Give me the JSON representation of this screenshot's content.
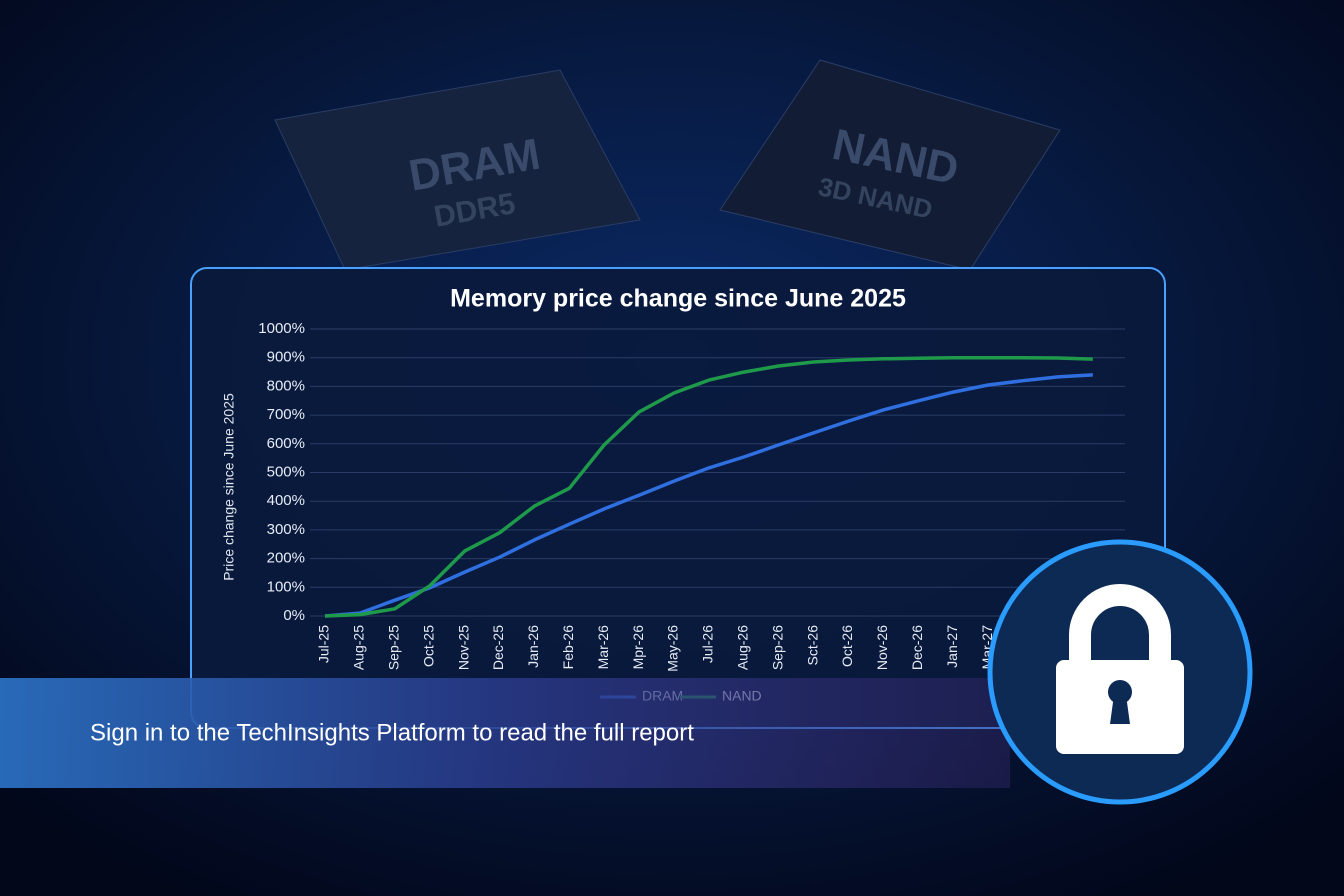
{
  "background": {
    "chips": [
      {
        "label": "DRAM",
        "sublabel": "DDR5"
      },
      {
        "label": "NAND",
        "sublabel": "3D NAND"
      }
    ]
  },
  "chart_data": {
    "type": "line",
    "title": "Memory price change since June 2025",
    "y_label": "Price change since June 2025",
    "categories": [
      "Jul-25",
      "Aug-25",
      "Sep-25",
      "Oct-25",
      "Nov-25",
      "Dec-25",
      "Jan-26",
      "Feb-26",
      "Mar-26",
      "Mpr-26",
      "May-26",
      "Jul-26",
      "Aug-26",
      "Sep-26",
      "Sct-26",
      "Oct-26",
      "Nov-26",
      "Dec-26",
      "Jan-27",
      "Mar-27",
      null,
      null,
      null
    ],
    "series": [
      {
        "name": "DRAM",
        "color": "#2f6fe0",
        "values": [
          0,
          10,
          55,
          98,
          153,
          205,
          265,
          320,
          373,
          421,
          470,
          516,
          554,
          596,
          638,
          679,
          718,
          750,
          780,
          805,
          820,
          833,
          840
        ]
      },
      {
        "name": "NAND",
        "color": "#1f9a4a",
        "values": [
          0,
          5,
          25,
          105,
          226,
          290,
          383,
          445,
          596,
          711,
          777,
          822,
          850,
          871,
          885,
          892,
          896,
          898,
          900,
          900,
          900,
          899,
          895
        ]
      }
    ],
    "ylim": [
      0,
      1000
    ],
    "yticks": [
      {
        "value": 0,
        "label": "0%"
      },
      {
        "value": 100,
        "label": "100%"
      },
      {
        "value": 200,
        "label": "200%"
      },
      {
        "value": 300,
        "label": "300%"
      },
      {
        "value": 400,
        "label": "400%"
      },
      {
        "value": 500,
        "label": "500%"
      },
      {
        "value": 600,
        "label": "600%"
      },
      {
        "value": 700,
        "label": "700%"
      },
      {
        "value": 800,
        "label": "800%"
      },
      {
        "value": 900,
        "label": "900%"
      },
      {
        "value": 1000,
        "label": "1000%"
      }
    ],
    "grid": true
  },
  "banner": {
    "text": "Sign in to the TechInsights Platform to read the full report"
  }
}
